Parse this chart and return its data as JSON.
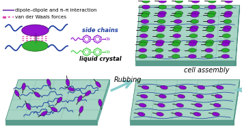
{
  "bg_color": "#ffffff",
  "teal_top": "#A8D5C5",
  "teal_mid": "#7BBFB0",
  "teal_dark": "#4A9080",
  "teal_side": "#5A9B8C",
  "purple_lc": "#8B00CC",
  "green_lc": "#22AA22",
  "blue_chain": "#2040A0",
  "arrow_color": "#88CCCC",
  "pink_dashed": "#DD44AA",
  "purple_legend": "#8855BB",
  "rubbing_text": "Rubbing",
  "cell_text": "cell assembly",
  "lc_text": "liquid crystal",
  "sc_text": "side chains",
  "legend1": "van der Waals forces",
  "legend2": "dipole–dipole and π–π interaction",
  "figsize": [
    3.54,
    1.89
  ],
  "dpi": 100
}
